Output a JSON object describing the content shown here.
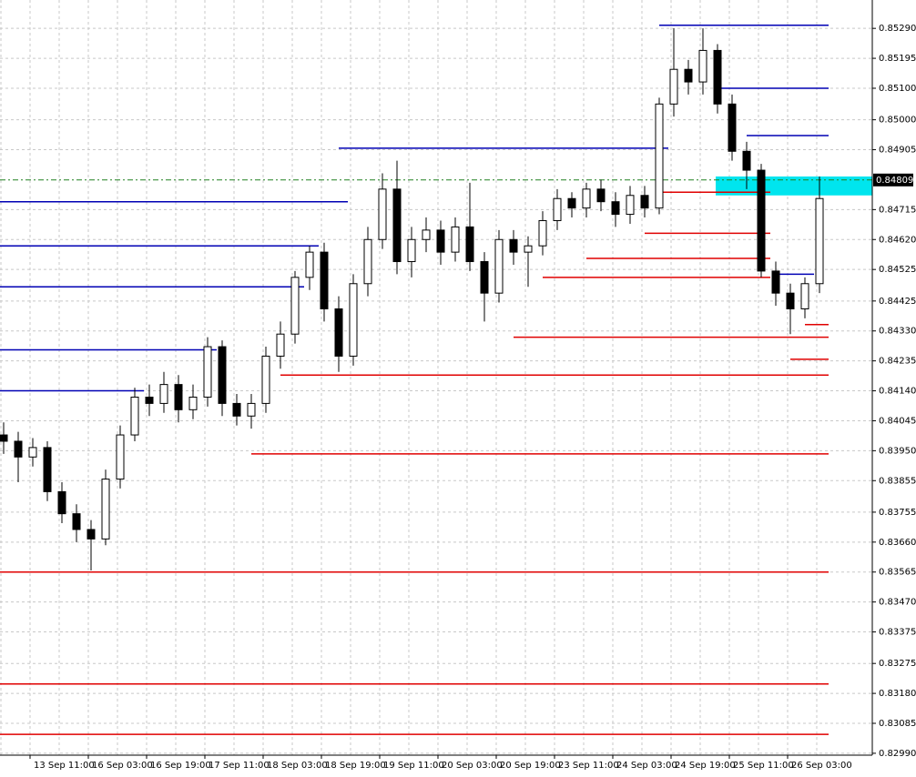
{
  "chart_data": {
    "type": "candlestick",
    "categories": [
      null,
      null,
      "13 Sep 11:00",
      null,
      null,
      null,
      "16 Sep 03:00",
      null,
      null,
      null,
      "16 Sep 19:00",
      null,
      null,
      null,
      "17 Sep 11:00",
      null,
      null,
      null,
      "18 Sep 03:00",
      null,
      null,
      null,
      "18 Sep 19:00",
      null,
      null,
      null,
      "19 Sep 11:00",
      null,
      null,
      null,
      "20 Sep 03:00",
      null,
      null,
      null,
      "20 Sep 19:00",
      null,
      null,
      null,
      "23 Sep 11:00",
      null,
      null,
      null,
      "24 Sep 03:00",
      null,
      null,
      null,
      "24 Sep 19:00",
      null,
      null,
      null,
      "25 Sep 11:00",
      null,
      null,
      null,
      "26 Sep 03:00",
      null,
      null
    ],
    "open": [
      0.84,
      0.8398,
      0.8393,
      0.8396,
      0.8382,
      0.8375,
      0.837,
      0.8367,
      0.8386,
      0.84,
      0.8412,
      0.841,
      0.8416,
      0.8408,
      0.8412,
      0.8428,
      0.841,
      0.8406,
      0.841,
      0.8425,
      0.8432,
      0.845,
      0.8458,
      0.844,
      0.8425,
      0.8448,
      0.8462,
      0.8478,
      0.8455,
      0.8462,
      0.8465,
      0.8458,
      0.8466,
      0.8455,
      0.8445,
      0.8462,
      0.8458,
      0.846,
      0.8468,
      0.8475,
      0.8472,
      0.8478,
      0.8474,
      0.847,
      0.8476,
      0.8472,
      0.8505,
      0.8516,
      0.8512,
      0.8522,
      0.8505,
      0.849,
      0.8484,
      0.8452,
      0.8445,
      0.844,
      0.8448
    ],
    "high": [
      0.8404,
      0.8401,
      0.8399,
      0.8398,
      0.8385,
      0.8378,
      0.8373,
      0.8389,
      0.8403,
      0.8415,
      0.8416,
      0.842,
      0.8419,
      0.8416,
      0.8431,
      0.843,
      0.8413,
      0.8413,
      0.8428,
      0.8436,
      0.8452,
      0.846,
      0.8461,
      0.8444,
      0.8451,
      0.8466,
      0.8483,
      0.8487,
      0.8466,
      0.8469,
      0.8468,
      0.8469,
      0.848,
      0.8458,
      0.8465,
      0.8465,
      0.8463,
      0.8471,
      0.8478,
      0.8477,
      0.848,
      0.8481,
      0.8477,
      0.8479,
      0.8479,
      0.8507,
      0.8529,
      0.8519,
      0.8529,
      0.8524,
      0.8508,
      0.8493,
      0.8486,
      0.8455,
      0.8448,
      0.845,
      0.8482
    ],
    "low": [
      0.8394,
      0.8385,
      0.839,
      0.8379,
      0.8372,
      0.8366,
      0.8357,
      0.8365,
      0.8383,
      0.8398,
      0.8406,
      0.8407,
      0.8404,
      0.8405,
      0.8409,
      0.8406,
      0.8403,
      0.8402,
      0.8407,
      0.8421,
      0.8429,
      0.8446,
      0.8436,
      0.842,
      0.8422,
      0.8444,
      0.8459,
      0.8451,
      0.845,
      0.8458,
      0.8454,
      0.8455,
      0.8452,
      0.8436,
      0.8442,
      0.8454,
      0.8447,
      0.8457,
      0.8465,
      0.8469,
      0.8469,
      0.8471,
      0.8466,
      0.8467,
      0.8469,
      0.847,
      0.8501,
      0.8508,
      0.8508,
      0.8502,
      0.8487,
      0.8478,
      0.845,
      0.8441,
      0.8432,
      0.8437,
      0.8445
    ],
    "close": [
      0.8398,
      0.8393,
      0.8396,
      0.8382,
      0.8375,
      0.837,
      0.8367,
      0.8386,
      0.84,
      0.8412,
      0.841,
      0.8416,
      0.8408,
      0.8412,
      0.8428,
      0.841,
      0.8406,
      0.841,
      0.8425,
      0.8432,
      0.845,
      0.8458,
      0.844,
      0.8425,
      0.8448,
      0.8462,
      0.8478,
      0.8455,
      0.8462,
      0.8465,
      0.8458,
      0.8466,
      0.8455,
      0.8445,
      0.8462,
      0.8458,
      0.846,
      0.8468,
      0.8475,
      0.8472,
      0.8478,
      0.8474,
      0.847,
      0.8476,
      0.8472,
      0.8505,
      0.8516,
      0.8512,
      0.8522,
      0.8505,
      0.849,
      0.8484,
      0.8452,
      0.8445,
      0.844,
      0.8448,
      0.8475
    ],
    "support_levels": [
      {
        "price": 0.83565,
        "from": 0,
        "to": 56
      },
      {
        "price": 0.8321,
        "from": 0,
        "to": 56
      },
      {
        "price": 0.8305,
        "from": 0,
        "to": 56
      },
      {
        "price": 0.8394,
        "from": 17,
        "to": 56
      },
      {
        "price": 0.8419,
        "from": 19,
        "to": 56
      },
      {
        "price": 0.8424,
        "from": 54,
        "to": 56
      },
      {
        "price": 0.8435,
        "from": 55,
        "to": 56
      },
      {
        "price": 0.8431,
        "from": 35,
        "to": 56
      },
      {
        "price": 0.845,
        "from": 37,
        "to": 52
      },
      {
        "price": 0.8456,
        "from": 40,
        "to": 52
      },
      {
        "price": 0.8464,
        "from": 44,
        "to": 52
      },
      {
        "price": 0.8477,
        "from": 45,
        "to": 52
      }
    ],
    "resistance_levels": [
      {
        "price": 0.853,
        "from": 45,
        "to": 56
      },
      {
        "price": 0.851,
        "from": 49,
        "to": 56
      },
      {
        "price": 0.8495,
        "from": 51,
        "to": 56
      },
      {
        "price": 0.8491,
        "from": 23,
        "to": 45
      },
      {
        "price": 0.8474,
        "from": 0,
        "to": 23
      },
      {
        "price": 0.846,
        "from": 0,
        "to": 21
      },
      {
        "price": 0.8447,
        "from": 0,
        "to": 20
      },
      {
        "price": 0.8427,
        "from": 0,
        "to": 14
      },
      {
        "price": 0.8414,
        "from": 0,
        "to": 9
      },
      {
        "price": 0.8451,
        "from": 53,
        "to": 55
      }
    ],
    "support_color": "#e00000",
    "resistance_color": "#0000b4",
    "zone": {
      "low": 0.8476,
      "high": 0.8482,
      "from": 49,
      "color": "#00e5ee"
    },
    "current_price": 0.84809,
    "ylim": [
      0.82984,
      0.8538
    ],
    "yticks": [
      {
        "value": 0.8529,
        "label": "0.85290"
      },
      0.85195,
      {
        "value": 0.851,
        "label": "0.85100"
      },
      {
        "value": 0.85,
        "label": "0.85000"
      },
      0.84905,
      0.84715,
      {
        "value": 0.8462,
        "label": "0.84620"
      },
      0.84525,
      0.84425,
      {
        "value": 0.8433,
        "label": "0.84330"
      },
      0.84235,
      {
        "value": 0.8414,
        "label": "0.84140"
      },
      0.84045,
      {
        "value": 0.8395,
        "label": "0.83950"
      },
      0.83855,
      0.83755,
      {
        "value": 0.8366,
        "label": "0.83660"
      },
      0.83565,
      {
        "value": 0.8347,
        "label": "0.83470"
      },
      0.83375,
      0.83275,
      {
        "value": 0.8318,
        "label": "0.83180"
      },
      0.83085,
      {
        "value": 0.8299,
        "label": "0.82990"
      }
    ],
    "grid": true
  }
}
